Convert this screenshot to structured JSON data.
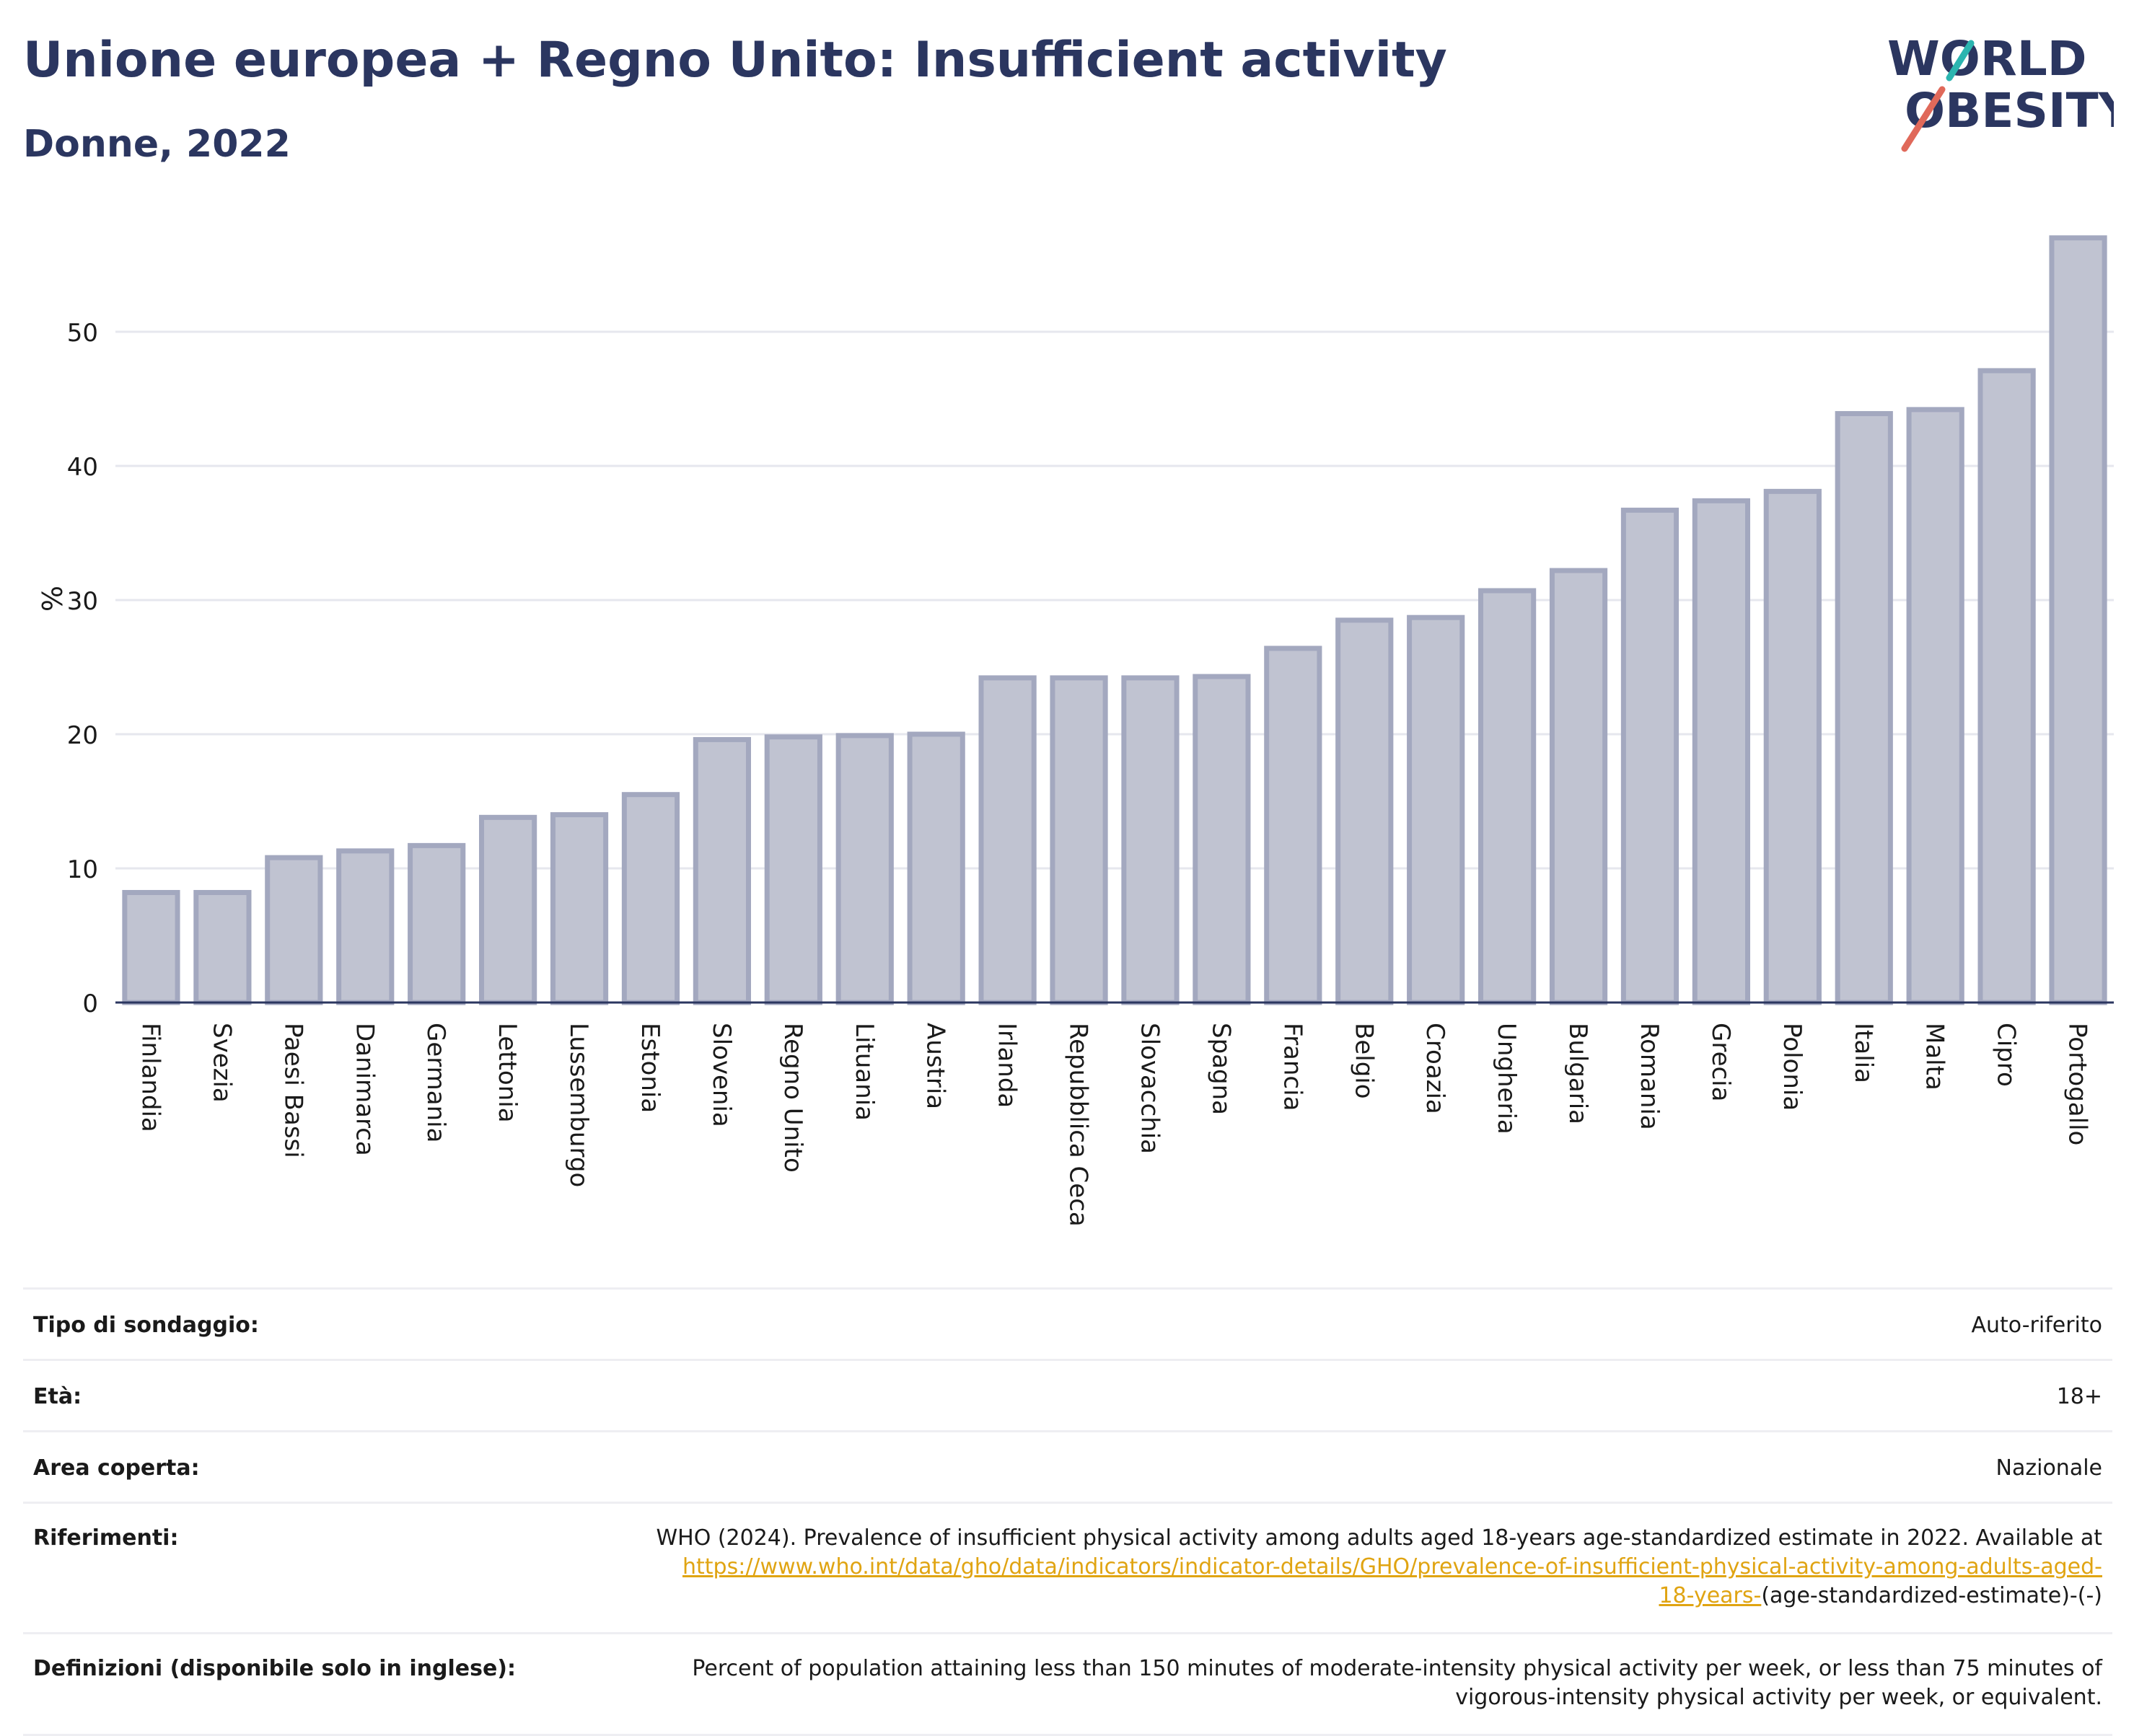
{
  "header": {
    "title": "Unione europea + Regno Unito: Insufficient activity",
    "subtitle": "Donne, 2022"
  },
  "logo": {
    "line1": "WORLD",
    "line2": "OBESITY",
    "colors": {
      "text": "#2b3660",
      "slash_red": "#e0695a",
      "slash_teal": "#2bb5b0"
    }
  },
  "chart_data": {
    "type": "bar",
    "title": "",
    "xlabel": "",
    "ylabel": "%",
    "ylim": [
      0,
      58
    ],
    "yticks": [
      0,
      10,
      20,
      30,
      40,
      50
    ],
    "grid": true,
    "bar_color": "#c0c3d1",
    "bar_edge_color": "#a3a8bf",
    "categories": [
      "Finlandia",
      "Svezia",
      "Paesi Bassi",
      "Danimarca",
      "Germania",
      "Lettonia",
      "Lussemburgo",
      "Estonia",
      "Slovenia",
      "Regno Unito",
      "Lituania",
      "Austria",
      "Irlanda",
      "Repubblica Ceca",
      "Slovacchia",
      "Spagna",
      "Francia",
      "Belgio",
      "Croazia",
      "Ungheria",
      "Bulgaria",
      "Romania",
      "Grecia",
      "Polonia",
      "Italia",
      "Malta",
      "Cipro",
      "Portogallo"
    ],
    "values": [
      8.2,
      8.2,
      10.8,
      11.3,
      11.7,
      13.8,
      14.0,
      15.5,
      19.6,
      19.8,
      19.9,
      20.0,
      24.2,
      24.2,
      24.2,
      24.3,
      26.4,
      28.5,
      28.7,
      30.7,
      32.2,
      36.7,
      37.4,
      38.1,
      43.9,
      44.2,
      47.1,
      57.0
    ]
  },
  "details": {
    "survey_type": {
      "label": "Tipo di sondaggio:",
      "value": "Auto-riferito"
    },
    "age": {
      "label": "Età:",
      "value": "18+"
    },
    "area": {
      "label": "Area coperta:",
      "value": "Nazionale"
    },
    "references": {
      "label": "Riferimenti:",
      "text": "WHO (2024). Prevalence of insufficient physical activity among adults aged 18-years age-standardized estimate in 2022. Available at",
      "link_part1": "https://www.who.int/data/gho/data/indicators/indicator-details/GHO/prevalence-of-insufficient-physical-activity-among-adults-aged-",
      "link_part2": "18-years-",
      "suffix": "(age-standardized-estimate)-(-)"
    },
    "definitions": {
      "label": "Definizioni (disponibile solo in inglese):",
      "line1": "Percent of population attaining less than 150 minutes of moderate-intensity physical activity per week, or less than 75 minutes of",
      "line2": "vigorous-intensity physical activity per week, or equivalent."
    }
  }
}
